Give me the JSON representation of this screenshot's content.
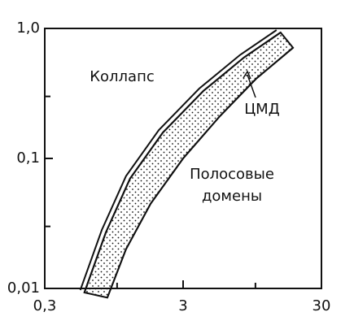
{
  "chart_data": {
    "type": "band",
    "xscale": "log",
    "yscale": "log",
    "xlim": [
      0.3,
      30
    ],
    "ylim": [
      0.01,
      1.0
    ],
    "xticks": [
      {
        "value": 0.3,
        "label": "0,3"
      },
      3,
      30
    ],
    "yticks": [
      {
        "value": 0.01,
        "label": "0,01"
      },
      {
        "value": 0.1,
        "label": "0,1"
      },
      {
        "value": 1.0,
        "label": "1,0"
      }
    ],
    "xminor": [
      1,
      10
    ],
    "yminor": [
      0.03,
      0.3
    ],
    "lower": {
      "x": [
        0.58,
        0.83,
        1.24,
        2.14,
        4.2,
        8.3,
        15.2
      ],
      "y": [
        0.0093,
        0.027,
        0.07,
        0.158,
        0.33,
        0.6,
        0.93
      ]
    },
    "upper": {
      "x": [
        0.85,
        1.16,
        1.75,
        3.0,
        5.5,
        10.1,
        18.7
      ],
      "y": [
        0.0085,
        0.02,
        0.045,
        0.1,
        0.21,
        0.41,
        0.71
      ]
    },
    "annotations": [
      "Коллапс",
      "ЦМД",
      "Полосовые",
      "домены"
    ]
  }
}
